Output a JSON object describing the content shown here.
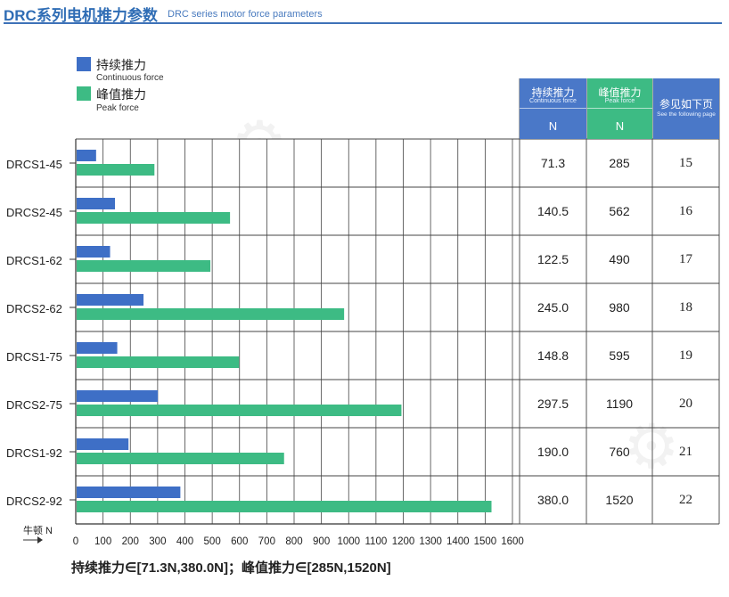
{
  "header": {
    "title": "DRC系列电机推力参数",
    "subtitle": "DRC series motor force parameters"
  },
  "legend": {
    "continuous": {
      "zh": "持续推力",
      "en": "Continuous force",
      "color": "#3e6fc6"
    },
    "peak": {
      "zh": "峰值推力",
      "en": "Peak force",
      "color": "#3dbb84"
    }
  },
  "table": {
    "columns": [
      {
        "zh": "持续推力",
        "en": "Continuous force",
        "unit": "N",
        "color": "#4a78c8"
      },
      {
        "zh": "峰值推力",
        "en": "Peak force",
        "unit": "N",
        "color": "#3dbb84"
      },
      {
        "zh": "参见如下页",
        "en": "See the following page",
        "unit": "",
        "color": "#4a78c8"
      }
    ],
    "rows": [
      {
        "continuous": "71.3",
        "peak": "285",
        "page": "15"
      },
      {
        "continuous": "140.5",
        "peak": "562",
        "page": "16"
      },
      {
        "continuous": "122.5",
        "peak": "490",
        "page": "17"
      },
      {
        "continuous": "245.0",
        "peak": "980",
        "page": "18"
      },
      {
        "continuous": "148.8",
        "peak": "595",
        "page": "19"
      },
      {
        "continuous": "297.5",
        "peak": "1190",
        "page": "20"
      },
      {
        "continuous": "190.0",
        "peak": "760",
        "page": "21"
      },
      {
        "continuous": "380.0",
        "peak": "1520",
        "page": "22"
      }
    ]
  },
  "footer": {
    "range_text": "持续推力∈[71.3N,380.0N]；峰值推力∈[285N,1520N]"
  },
  "chart_data": {
    "type": "bar",
    "orientation": "horizontal",
    "categories": [
      "DRCS1-45",
      "DRCS2-45",
      "DRCS1-62",
      "DRCS2-62",
      "DRCS1-75",
      "DRCS2-75",
      "DRCS1-92",
      "DRCS2-92"
    ],
    "series": [
      {
        "name": "持续推力",
        "color": "#3e6fc6",
        "values": [
          71.3,
          140.5,
          122.5,
          245.0,
          148.8,
          297.5,
          190.0,
          380.0
        ]
      },
      {
        "name": "峰值推力",
        "color": "#3dbb84",
        "values": [
          285,
          562,
          490,
          980,
          595,
          1190,
          760,
          1520
        ]
      }
    ],
    "xlabel": "牛顿 N",
    "xlim": [
      0,
      1600
    ],
    "xticks": [
      "0",
      "100",
      "200",
      "300",
      "400",
      "500",
      "600",
      "700",
      "800",
      "900",
      "1000",
      "1100",
      "1200",
      "1300",
      "1400",
      "1500",
      "1600"
    ],
    "grid": true,
    "legend": "top-left"
  }
}
